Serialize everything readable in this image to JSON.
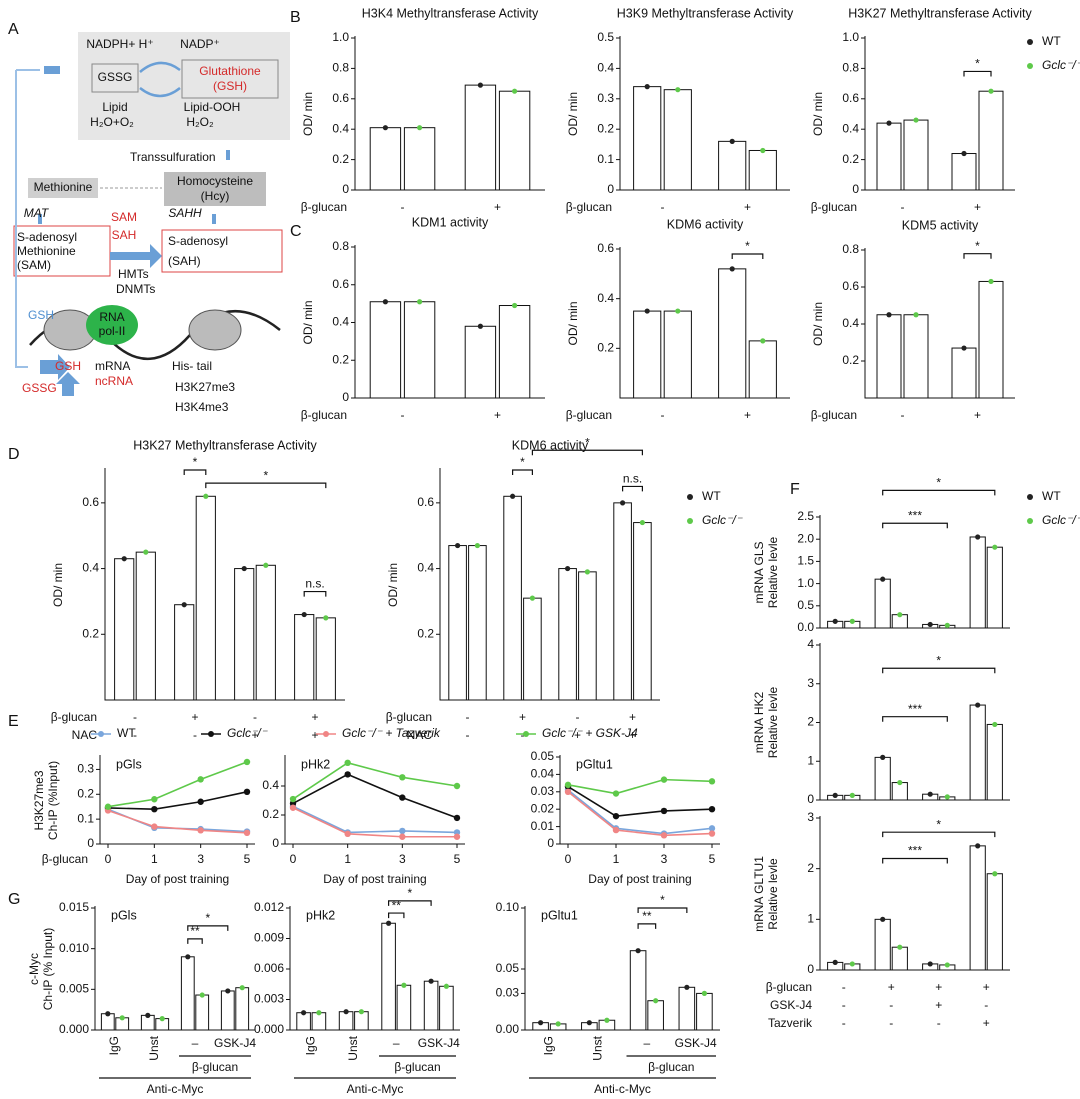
{
  "panel_labels": [
    "A",
    "B",
    "C",
    "D",
    "E",
    "F",
    "G"
  ],
  "diagram": {
    "labels": [
      "NADPH+ H⁺",
      "NADP⁺",
      "GSSG",
      "Glutathione",
      "(GSH)",
      "Lipid",
      "H₂O+O₂",
      "Lipid-OOH",
      "H₂O₂",
      "Transsulfuration",
      "Methionine",
      "Homocysteine",
      "(Hcy)",
      "MAT",
      "SAHH",
      "SAM",
      "SAH",
      "S-adenosyl",
      "Methionine",
      "(SAM)",
      "S-adenosyl",
      "(SAH)",
      "HMTs",
      "DNMTs",
      "GSH",
      "RNA",
      "pol-II",
      "mRNA",
      "ncRNA",
      "His- tail",
      "H3K27me3",
      "H3K4me3",
      "GSH",
      "GSSG"
    ]
  },
  "chart_data": [
    {
      "type": "bar",
      "title": "H3K4 Methyltransferase Activity",
      "ylabel": [
        "OD/ min"
      ],
      "ylim": [
        0,
        1
      ],
      "yticks": [
        0,
        0.2,
        0.4,
        0.6,
        0.8,
        {
          "value": 1,
          "label": "1.0"
        }
      ],
      "rows": [
        {
          "label": "β-glucan",
          "values": [
            "-",
            "+"
          ]
        }
      ],
      "series": [
        {
          "color": "#222222",
          "values": [
            0.41,
            0.69
          ]
        },
        {
          "color": "#5ec94a",
          "values": [
            0.41,
            0.65
          ]
        }
      ]
    },
    {
      "type": "bar",
      "title": "H3K9 Methyltransferase Activity",
      "ylabel": [
        "OD/ min"
      ],
      "ylim": [
        0,
        0.5
      ],
      "yticks": [
        0,
        0.1,
        0.2,
        0.3,
        0.4,
        0.5
      ],
      "rows": [
        {
          "label": "β-glucan",
          "values": [
            "-",
            "+"
          ]
        }
      ],
      "series": [
        {
          "color": "#222222",
          "values": [
            0.34,
            0.16
          ]
        },
        {
          "color": "#5ec94a",
          "values": [
            0.33,
            0.13
          ]
        }
      ]
    },
    {
      "type": "bar",
      "title": "H3K27 Methyltransferase Activity",
      "ylabel": [
        "OD/ min"
      ],
      "ylim": [
        0,
        1
      ],
      "yticks": [
        0,
        0.2,
        0.4,
        0.6,
        0.8,
        {
          "value": 1,
          "label": "1.0"
        }
      ],
      "rows": [
        {
          "label": "β-glucan",
          "values": [
            "-",
            "+"
          ]
        }
      ],
      "annotations": [
        "*"
      ],
      "series": [
        {
          "name": "WT",
          "color": "#222222",
          "values": [
            0.44,
            0.24
          ]
        },
        {
          "name": "Gclc⁻/⁻",
          "color": "#5ec94a",
          "values": [
            0.46,
            0.65
          ]
        }
      ]
    },
    {
      "type": "bar",
      "title": "KDM1 activity",
      "ylabel": [
        "OD/ min"
      ],
      "ylim": [
        0,
        0.8
      ],
      "yticks": [
        0,
        0.2,
        0.4,
        0.6,
        0.8
      ],
      "rows": [
        {
          "label": "β-glucan",
          "values": [
            "-",
            "+"
          ]
        }
      ],
      "series": [
        {
          "color": "#222222",
          "values": [
            0.51,
            0.38
          ]
        },
        {
          "color": "#5ec94a",
          "values": [
            0.51,
            0.49
          ]
        }
      ]
    },
    {
      "type": "bar",
      "title": "KDM6 activity",
      "ylabel": [
        "OD/ min"
      ],
      "ylim": [
        0,
        0.6
      ],
      "yticks": [
        0.2,
        0.4,
        0.6
      ],
      "rows": [
        {
          "label": "β-glucan",
          "values": [
            "-",
            "+"
          ]
        }
      ],
      "annotations": [
        "*"
      ],
      "series": [
        {
          "color": "#222222",
          "values": [
            0.35,
            0.52
          ]
        },
        {
          "color": "#5ec94a",
          "values": [
            0.35,
            0.23
          ]
        }
      ]
    },
    {
      "type": "bar",
      "title": "KDM5 activity",
      "ylabel": [
        "OD/ min"
      ],
      "ylim": [
        0,
        0.8
      ],
      "yticks": [
        0.2,
        0.4,
        0.6,
        0.8
      ],
      "rows": [
        {
          "label": "β-glucan",
          "values": [
            "-",
            "+"
          ]
        }
      ],
      "annotations": [
        "*"
      ],
      "series": [
        {
          "color": "#222222",
          "values": [
            0.45,
            0.27
          ]
        },
        {
          "color": "#5ec94a",
          "values": [
            0.45,
            0.63
          ]
        }
      ]
    },
    {
      "type": "bar",
      "title": "H3K27 Methyltransferase Activity",
      "ylabel": [
        "OD/ min"
      ],
      "ylim": [
        0,
        0.7
      ],
      "yticks": [
        0.2,
        0.4,
        0.6
      ],
      "rows": [
        {
          "label": "β-glucan",
          "values": [
            "-",
            "+",
            "-",
            "+"
          ]
        },
        {
          "label": "NAC",
          "values": [
            "-",
            "-",
            "+",
            "+"
          ]
        }
      ],
      "annotations": [
        "*",
        "*",
        "n.s."
      ],
      "series": [
        {
          "color": "#222222",
          "values": [
            0.43,
            0.29,
            0.4,
            0.26
          ]
        },
        {
          "color": "#5ec94a",
          "values": [
            0.45,
            0.62,
            0.41,
            0.25
          ]
        }
      ]
    },
    {
      "type": "bar",
      "title": "KDM6 activity",
      "ylabel": [
        "OD/ min"
      ],
      "ylim": [
        0,
        0.7
      ],
      "yticks": [
        0.2,
        0.4,
        0.6
      ],
      "rows": [
        {
          "label": "β-glucan",
          "values": [
            "-",
            "+",
            "-",
            "+"
          ]
        },
        {
          "label": "NAC",
          "values": [
            "-",
            "-",
            "+",
            "+"
          ]
        }
      ],
      "annotations": [
        "*",
        "*",
        "n.s."
      ],
      "series": [
        {
          "name": "WT",
          "color": "#222222",
          "values": [
            0.47,
            0.62,
            0.4,
            0.6
          ]
        },
        {
          "name": "Gclc⁻/⁻",
          "color": "#5ec94a",
          "values": [
            0.47,
            0.31,
            0.39,
            0.54
          ]
        }
      ]
    },
    {
      "type": "line",
      "title": "pGls",
      "ylabel": [
        "H3K27me3",
        "Ch-IP (%Input)"
      ],
      "xlabel": "Day of post training",
      "row_label": "β-glucan",
      "categories": [
        "0",
        "1",
        "3",
        "5"
      ],
      "ylim": [
        0,
        0.35
      ],
      "yticks": [
        0,
        0.1,
        0.2,
        0.3
      ],
      "series": [
        {
          "name": "WT",
          "color": "#7aa6dc",
          "values": [
            0.14,
            0.065,
            0.06,
            0.05
          ]
        },
        {
          "name": "Gclc⁻/⁻",
          "color": "#111111",
          "values": [
            0.145,
            0.14,
            0.17,
            0.21
          ]
        },
        {
          "name": "Gclc⁻/⁻ + Tazverik",
          "color": "#f08585",
          "values": [
            0.135,
            0.07,
            0.055,
            0.045
          ]
        },
        {
          "name": "Gclc⁻/⁻ + GSK-J4",
          "color": "#5ec94a",
          "values": [
            0.15,
            0.18,
            0.26,
            0.33
          ]
        }
      ]
    },
    {
      "type": "line",
      "title": "pHk2",
      "xlabel": "Day of post training",
      "categories": [
        "0",
        "1",
        "3",
        "5"
      ],
      "ylim": [
        0,
        0.6
      ],
      "yticks": [
        0,
        0.2,
        0.4
      ],
      "series": [
        {
          "color": "#7aa6dc",
          "values": [
            0.26,
            0.08,
            0.09,
            0.08
          ]
        },
        {
          "color": "#111111",
          "values": [
            0.28,
            0.48,
            0.32,
            0.18
          ]
        },
        {
          "color": "#f08585",
          "values": [
            0.25,
            0.07,
            0.05,
            0.05
          ]
        },
        {
          "color": "#5ec94a",
          "values": [
            0.31,
            0.56,
            0.46,
            0.4
          ]
        }
      ]
    },
    {
      "type": "line",
      "title": "pGltu1",
      "xlabel": "Day of post training",
      "categories": [
        "0",
        "1",
        "3",
        "5"
      ],
      "ylim": [
        0,
        0.05
      ],
      "yticks": [
        0,
        0.01,
        0.02,
        0.03,
        0.04,
        0.05
      ],
      "series": [
        {
          "color": "#7aa6dc",
          "values": [
            0.031,
            0.009,
            0.006,
            0.009
          ]
        },
        {
          "color": "#111111",
          "values": [
            0.033,
            0.016,
            0.019,
            0.02
          ]
        },
        {
          "color": "#f08585",
          "values": [
            0.03,
            0.008,
            0.005,
            0.006
          ]
        },
        {
          "color": "#5ec94a",
          "values": [
            0.034,
            0.029,
            0.037,
            0.036
          ]
        }
      ]
    },
    {
      "type": "bar",
      "title": "pGls",
      "ylabel": [
        "c-Myc",
        "Ch-IP (% Input)"
      ],
      "ylim": [
        0,
        0.015
      ],
      "yticks": [
        {
          "value": 0,
          "label": "0.000"
        },
        0.005,
        {
          "value": 0.01,
          "label": "0.010"
        },
        0.015
      ],
      "categories": [
        "IgG",
        "Unst",
        "–",
        "GSK-J4"
      ],
      "brackets": [
        "β-glucan",
        "Anti-c-Myc"
      ],
      "annotations": [
        "**",
        "*"
      ],
      "series": [
        {
          "color": "#222222",
          "values": [
            0.002,
            0.0018,
            0.009,
            0.0048
          ]
        },
        {
          "color": "#5ec94a",
          "values": [
            0.0015,
            0.0014,
            0.0043,
            0.0052
          ]
        }
      ]
    },
    {
      "type": "bar",
      "title": "pHk2",
      "ylim": [
        0,
        0.012
      ],
      "yticks": [
        {
          "value": 0,
          "label": "0.000"
        },
        0.003,
        0.006,
        0.009,
        0.012
      ],
      "categories": [
        "IgG",
        "Unst",
        "–",
        "GSK-J4"
      ],
      "brackets": [
        "β-glucan",
        "Anti-c-Myc"
      ],
      "annotations": [
        "**",
        "*"
      ],
      "series": [
        {
          "color": "#222222",
          "values": [
            0.0017,
            0.0018,
            0.0105,
            0.0048
          ]
        },
        {
          "color": "#5ec94a",
          "values": [
            0.0017,
            0.0018,
            0.0044,
            0.0043
          ]
        }
      ]
    },
    {
      "type": "bar",
      "title": "pGltu1",
      "ylim": [
        0,
        0.1
      ],
      "yticks": [
        {
          "value": 0,
          "label": "0.00"
        },
        0.03,
        0.05,
        {
          "value": 0.1,
          "label": "0.10"
        }
      ],
      "categories": [
        "IgG",
        "Unst",
        "–",
        "GSK-J4"
      ],
      "brackets": [
        "β-glucan",
        "Anti-c-Myc"
      ],
      "annotations": [
        "**",
        "*"
      ],
      "series": [
        {
          "color": "#222222",
          "values": [
            0.006,
            0.006,
            0.065,
            0.035
          ]
        },
        {
          "color": "#5ec94a",
          "values": [
            0.005,
            0.008,
            0.024,
            0.03
          ]
        }
      ]
    },
    {
      "type": "bar",
      "ylabel": [
        "mRNA GLS",
        "Relative levle"
      ],
      "ylim": [
        0,
        2.5
      ],
      "yticks": [
        {
          "value": 0,
          "label": "0.0"
        },
        0.5,
        {
          "value": 1,
          "label": "1.0"
        },
        1.5,
        {
          "value": 2,
          "label": "2.0"
        },
        2.5
      ],
      "annotations": [
        "***",
        "*"
      ],
      "series": [
        {
          "name": "WT",
          "color": "#222222",
          "values": [
            0.15,
            1.1,
            0.08,
            2.05
          ]
        },
        {
          "name": "Gclc⁻/⁻",
          "color": "#5ec94a",
          "values": [
            0.15,
            0.3,
            0.06,
            1.82
          ]
        }
      ]
    },
    {
      "type": "bar",
      "ylabel": [
        "mRNA HK2",
        "Relative levle"
      ],
      "ylim": [
        0,
        4
      ],
      "yticks": [
        0,
        1,
        2,
        3,
        4
      ],
      "annotations": [
        "***",
        "*"
      ],
      "series": [
        {
          "color": "#222222",
          "values": [
            0.12,
            1.1,
            0.15,
            2.45
          ]
        },
        {
          "color": "#5ec94a",
          "values": [
            0.12,
            0.45,
            0.08,
            1.95
          ]
        }
      ]
    },
    {
      "type": "bar",
      "ylabel": [
        "mRNA GLTU1",
        "Relative levle"
      ],
      "ylim": [
        0,
        3
      ],
      "yticks": [
        0,
        1,
        2,
        3
      ],
      "annotations": [
        "***",
        "*"
      ],
      "rows": [
        {
          "label": "β-glucan",
          "values": [
            "-",
            "+",
            "+",
            "+"
          ]
        },
        {
          "label": "GSK-J4",
          "values": [
            "-",
            "-",
            "+",
            "-"
          ]
        },
        {
          "label": "Tazverik",
          "values": [
            "-",
            "-",
            "-",
            "+"
          ]
        }
      ],
      "series": [
        {
          "color": "#222222",
          "values": [
            0.15,
            1.0,
            0.12,
            2.45
          ]
        },
        {
          "color": "#5ec94a",
          "values": [
            0.12,
            0.45,
            0.1,
            1.9
          ]
        }
      ]
    }
  ]
}
